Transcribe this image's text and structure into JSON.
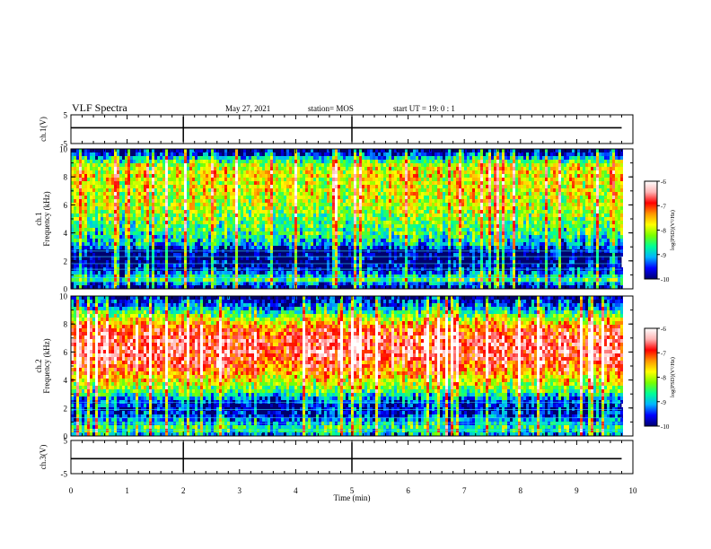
{
  "header": {
    "title": "VLF Spectra",
    "date": "May 27, 2021",
    "station": "station= MOS",
    "start": "start  UT =  19: 0  : 1"
  },
  "colors": {
    "colormap": [
      "#00006e",
      "#0000ff",
      "#00b4ff",
      "#00ff96",
      "#78ff00",
      "#ffff00",
      "#ff9600",
      "#ff0000",
      "#ffb4b4",
      "#ffffff"
    ],
    "background": "#ffffff",
    "axis": "#000000"
  },
  "chart_data": [
    {
      "type": "line",
      "ylabel": "ch.1(V)",
      "xlim": [
        0,
        10
      ],
      "ylim": [
        -5,
        5
      ],
      "yticks": [
        "5",
        "-5"
      ],
      "series": [
        {
          "x": [
            0,
            9.8
          ],
          "y": [
            0.5,
            0.5
          ]
        }
      ]
    },
    {
      "type": "heatmap",
      "ylabel": "ch.1\nFrequency (kHz)",
      "xlim": [
        0,
        10
      ],
      "ylim": [
        0,
        10
      ],
      "yticks": [
        "0",
        "2",
        "4",
        "6",
        "8",
        "10"
      ],
      "data_xmax": 9.8,
      "colorbar": {
        "label": "log(PSD)(V²/Hz)",
        "range": [
          -10,
          -6
        ],
        "ticks": [
          "-6",
          "-7",
          "-8",
          "-9",
          "-10"
        ]
      },
      "lines_khz": [
        0.5,
        0.8,
        1.4,
        1.8,
        2.3,
        2.7
      ],
      "profile": [
        [
          0,
          -10
        ],
        [
          0.4,
          -9.3
        ],
        [
          0.7,
          -8.3
        ],
        [
          1.0,
          -9.2
        ],
        [
          1.5,
          -9.8
        ],
        [
          2.0,
          -10
        ],
        [
          2.7,
          -9.9
        ],
        [
          3.2,
          -9.0
        ],
        [
          4.0,
          -8.6
        ],
        [
          5.0,
          -8.3
        ],
        [
          6.0,
          -8.0
        ],
        [
          7.0,
          -7.9
        ],
        [
          8.0,
          -7.8
        ],
        [
          8.8,
          -7.9
        ],
        [
          9.3,
          -8.8
        ],
        [
          9.7,
          -9.8
        ],
        [
          10,
          -10
        ]
      ]
    },
    {
      "type": "heatmap",
      "ylabel": "ch.2\nFrequency (kHz)",
      "xlim": [
        0,
        10
      ],
      "ylim": [
        0,
        10
      ],
      "yticks": [
        "0",
        "2",
        "4",
        "6",
        "8",
        "10"
      ],
      "data_xmax": 9.8,
      "colorbar": {
        "label": "log(PSD)(V²/Hz)",
        "range": [
          -10,
          -6
        ],
        "ticks": [
          "-6",
          "-7",
          "-8",
          "-9",
          "-10"
        ]
      },
      "lines_khz": [
        0.4,
        0.9,
        1.3,
        1.9,
        2.4
      ],
      "profile": [
        [
          0,
          -9.3
        ],
        [
          0.5,
          -8.4
        ],
        [
          1.0,
          -9.0
        ],
        [
          1.5,
          -9.6
        ],
        [
          2.0,
          -9.7
        ],
        [
          2.6,
          -9.3
        ],
        [
          3.2,
          -8.4
        ],
        [
          4.0,
          -7.7
        ],
        [
          5.0,
          -7.0
        ],
        [
          6.0,
          -6.6
        ],
        [
          7.0,
          -6.7
        ],
        [
          7.8,
          -7.2
        ],
        [
          8.6,
          -8.2
        ],
        [
          9.3,
          -9.3
        ],
        [
          10,
          -9.9
        ]
      ]
    },
    {
      "type": "line",
      "ylabel": "ch.3(V)",
      "xlabel": "Time (min)",
      "xlim": [
        0,
        10
      ],
      "ylim": [
        -5,
        5
      ],
      "yticks": [
        "5",
        "-5"
      ],
      "xticks": [
        "0",
        "1",
        "2",
        "3",
        "4",
        "5",
        "6",
        "7",
        "8",
        "9",
        "10"
      ],
      "series": [
        {
          "x": [
            0,
            9.8
          ],
          "y": [
            -0.5,
            -0.5
          ]
        }
      ]
    }
  ]
}
